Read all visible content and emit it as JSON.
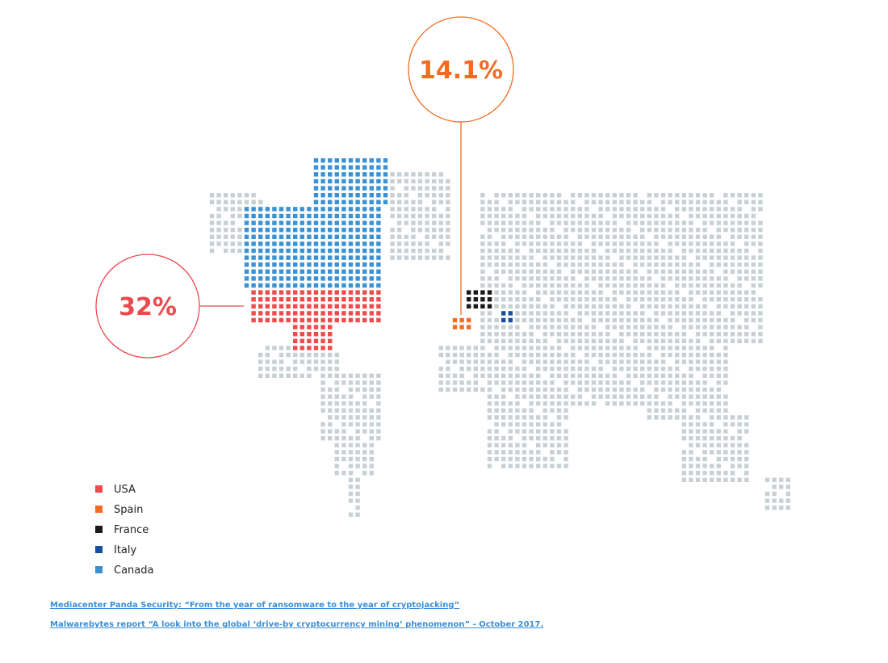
{
  "callouts": [
    {
      "label": "32%",
      "color": "#e84a4d"
    },
    {
      "label": "14.1%",
      "color": "#f26b21"
    }
  ],
  "legend": [
    {
      "name": "USA",
      "color": "#ee4b4b"
    },
    {
      "name": "Spain",
      "color": "#f26b21"
    },
    {
      "name": "France",
      "color": "#1a1a1a"
    },
    {
      "name": "Italy",
      "color": "#1450a0"
    },
    {
      "name": "Canada",
      "color": "#3a92d4"
    }
  ],
  "sources": [
    "Mediacenter Panda Security: “From the year of ransomware to the year of cryptojacking”",
    "Malwarebytes report “A look into the global ‘drive-by cryptocurrency mining’ phenomenon” - October 2017."
  ]
}
